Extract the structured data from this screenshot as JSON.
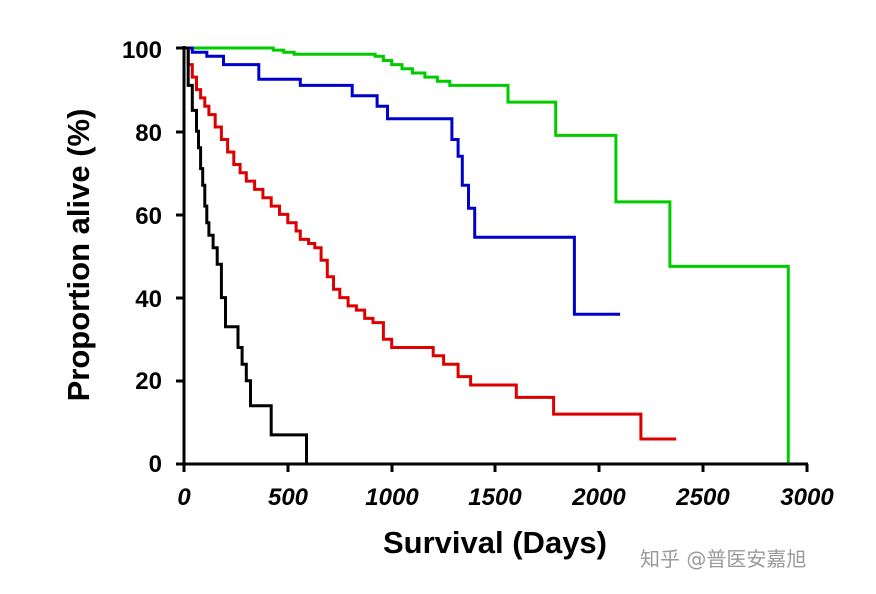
{
  "chart_data": {
    "type": "line",
    "step": true,
    "title": "",
    "xlabel": "Survival (Days)",
    "ylabel": "Proportion alive (%)",
    "xlim": [
      0,
      3000
    ],
    "ylim": [
      0,
      100
    ],
    "xticks": [
      "0",
      "500",
      "1000",
      "1500",
      "2000",
      "2500",
      "3000"
    ],
    "yticks": [
      "0",
      "20",
      "40",
      "60",
      "80",
      "100"
    ],
    "grid": false,
    "legend": "none",
    "series": [
      {
        "name": "green",
        "color": "#00cc00",
        "x": [
          0,
          380,
          430,
          480,
          530,
          560,
          620,
          920,
          960,
          1000,
          1050,
          1100,
          1160,
          1220,
          1280,
          1330,
          1560,
          1790,
          2080,
          2340,
          2910,
          2910
        ],
        "y": [
          100,
          100,
          99.5,
          99,
          98.5,
          98.5,
          98.5,
          98,
          97,
          96,
          95,
          94,
          93,
          92,
          91,
          91,
          87,
          79,
          63,
          47.5,
          47.5,
          0
        ]
      },
      {
        "name": "blue",
        "color": "#0000cc",
        "x": [
          0,
          40,
          110,
          190,
          360,
          560,
          810,
          930,
          980,
          1290,
          1320,
          1340,
          1370,
          1400,
          1880,
          2100
        ],
        "y": [
          100,
          99,
          98,
          96,
          92.5,
          91,
          88.5,
          86,
          83,
          78,
          74,
          67,
          61.5,
          54.5,
          36,
          36
        ]
      },
      {
        "name": "red",
        "color": "#dd0000",
        "x": [
          0,
          20,
          40,
          60,
          80,
          100,
          120,
          150,
          180,
          210,
          240,
          270,
          300,
          340,
          380,
          420,
          460,
          500,
          540,
          560,
          600,
          630,
          660,
          690,
          720,
          750,
          790,
          830,
          870,
          910,
          960,
          1000,
          1200,
          1250,
          1320,
          1380,
          1600,
          1780,
          2200,
          2370
        ],
        "y": [
          100,
          96,
          93,
          90,
          88,
          86,
          84,
          81,
          78,
          75,
          72,
          70,
          68,
          66,
          64,
          62,
          60,
          58,
          56,
          54,
          53,
          52,
          49,
          45,
          42,
          40,
          38,
          37,
          35,
          34,
          30,
          28,
          26,
          24,
          21,
          19,
          16,
          12,
          6,
          6
        ]
      },
      {
        "name": "black",
        "color": "#000000",
        "x": [
          0,
          20,
          40,
          60,
          70,
          80,
          90,
          100,
          110,
          120,
          140,
          160,
          180,
          200,
          250,
          260,
          280,
          300,
          320,
          420,
          590,
          590
        ],
        "y": [
          100,
          91,
          85,
          80,
          76,
          71,
          67,
          62,
          58,
          55,
          52,
          48,
          40,
          33,
          33,
          28,
          24,
          20,
          14,
          7,
          7,
          0
        ]
      }
    ]
  },
  "watermark": {
    "text": "知乎 @普医安嘉旭"
  }
}
